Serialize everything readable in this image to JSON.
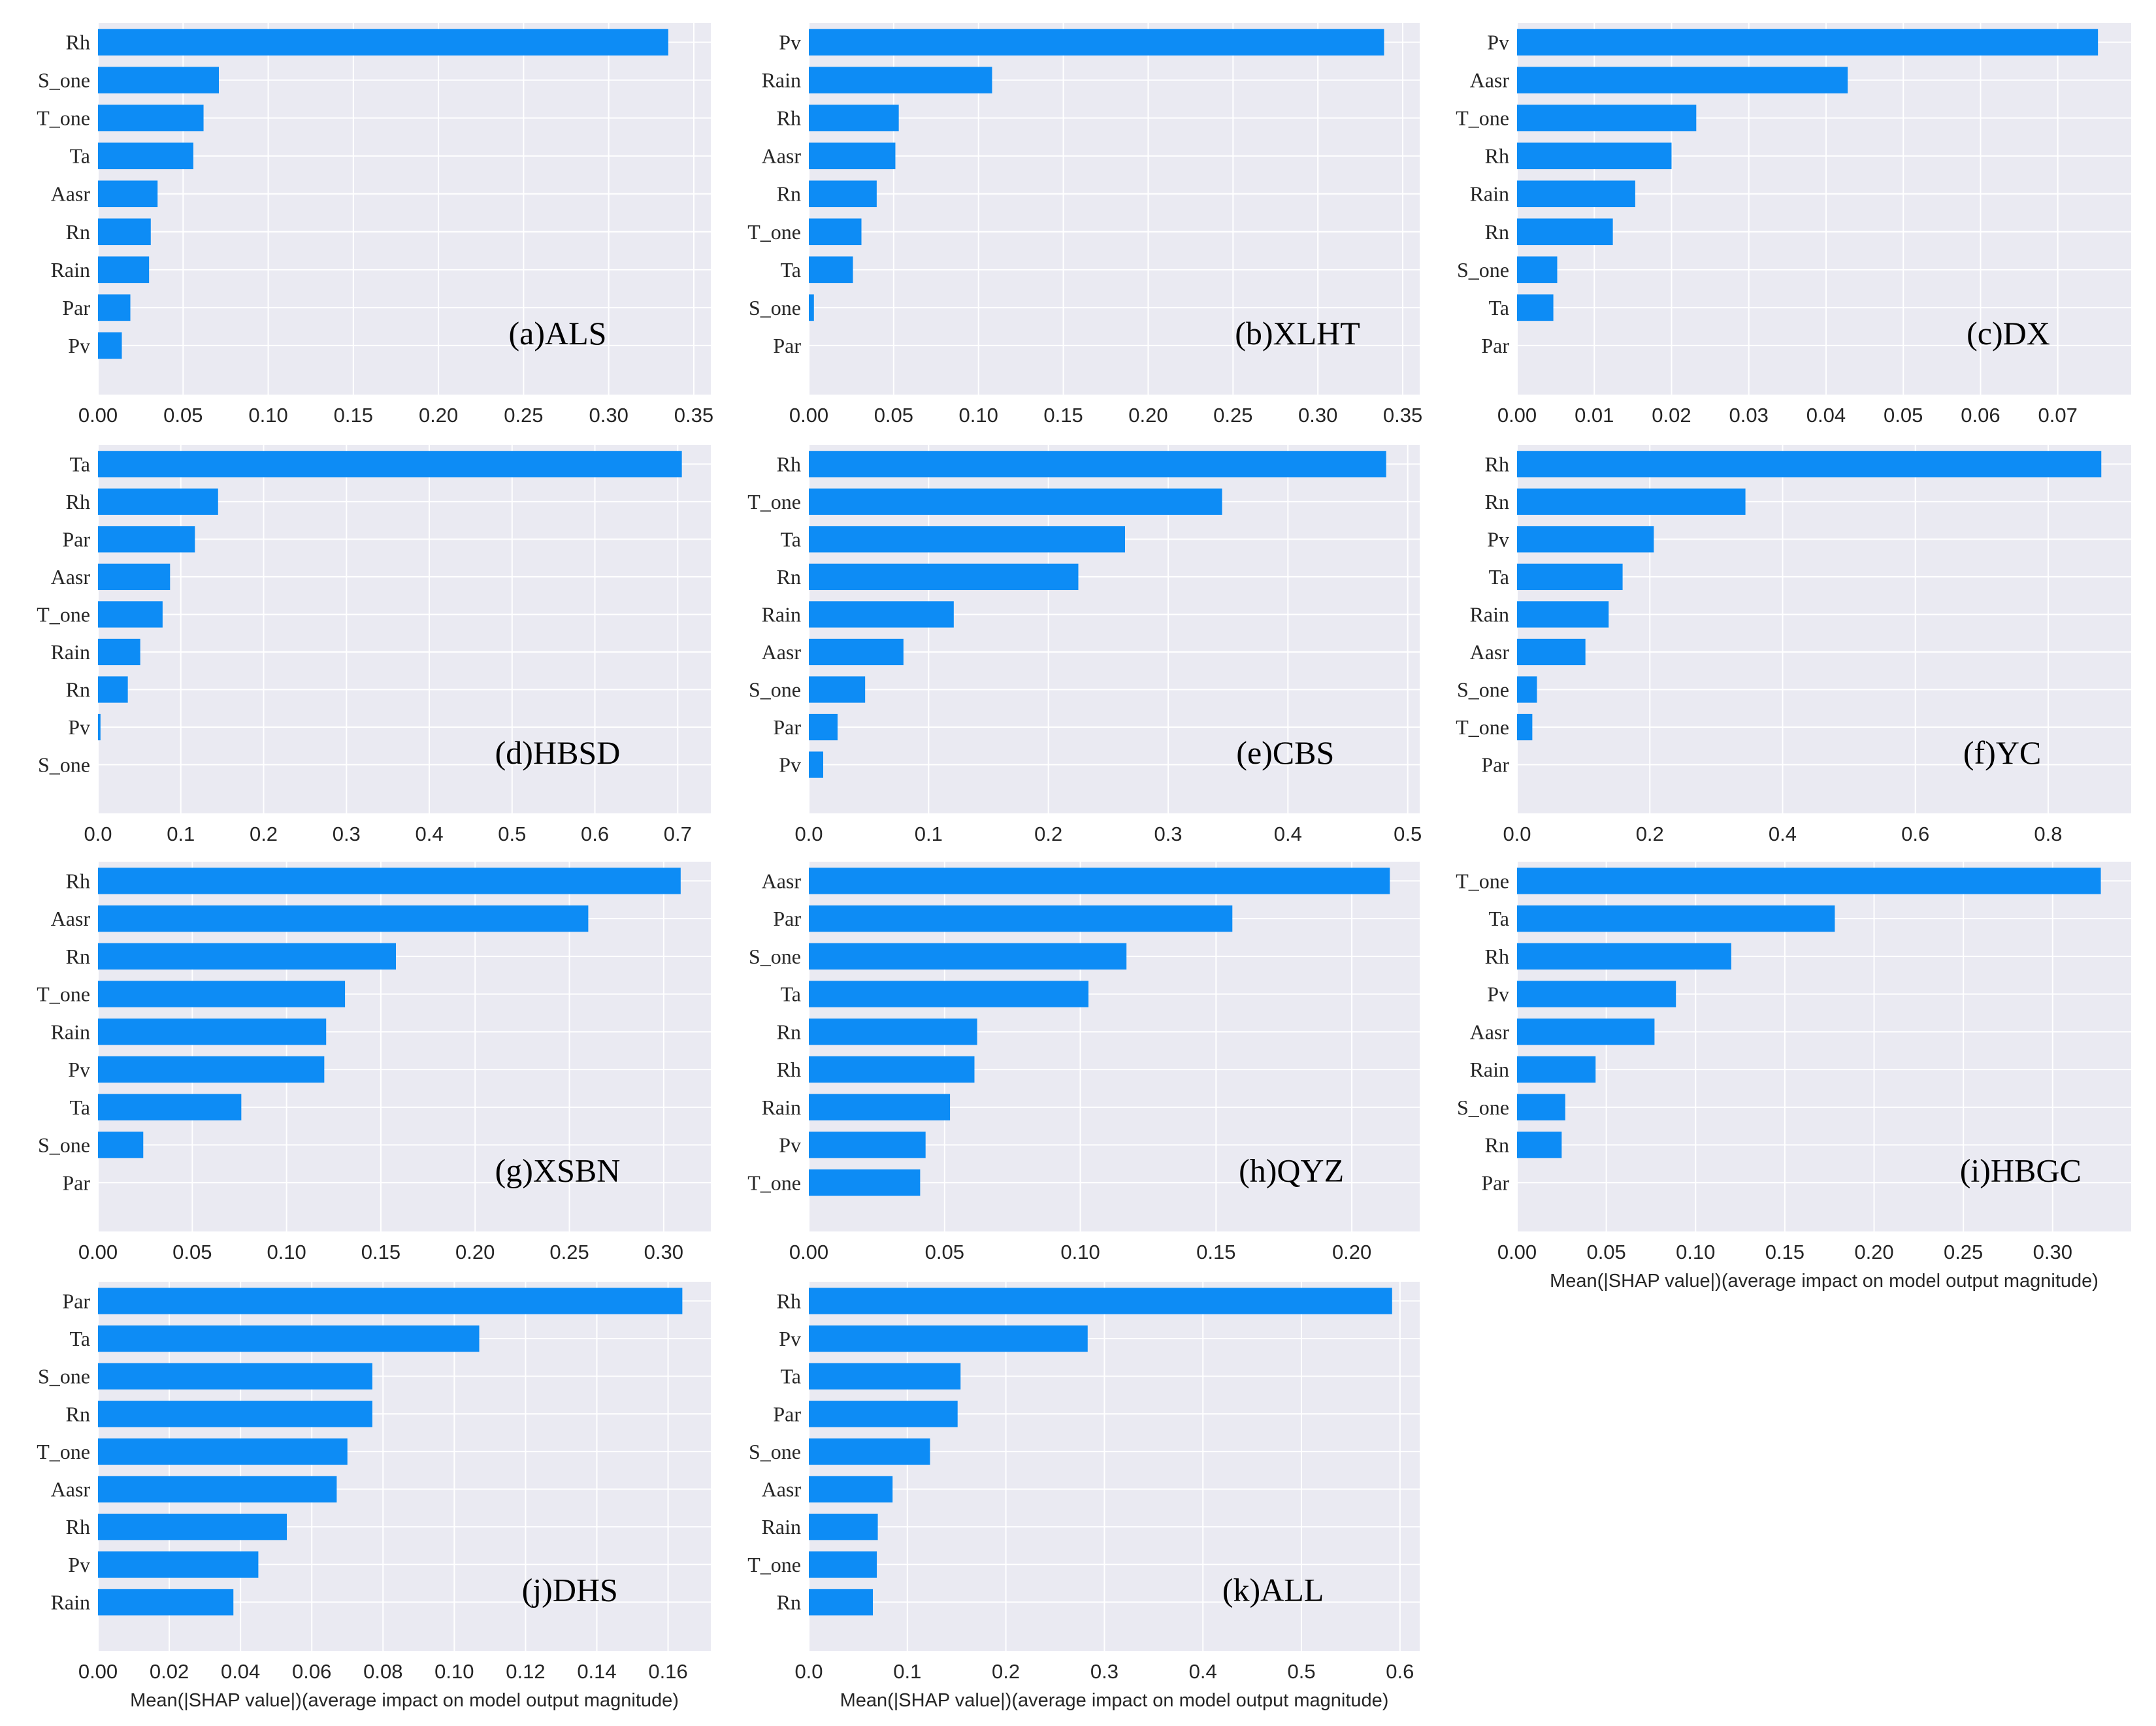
{
  "colors": {
    "bar": "#0d8cf5",
    "plot_bg": "#eaeaf2",
    "grid": "#ffffff",
    "text": "#262626"
  },
  "chart_data": [
    {
      "type": "bar",
      "orientation": "horizontal",
      "title": "(a)ALS",
      "categories": [
        "Rh",
        "S_one",
        "T_one",
        "Ta",
        "Aasr",
        "Rn",
        "Rain",
        "Par",
        "Pv"
      ],
      "values": [
        0.335,
        0.071,
        0.062,
        0.056,
        0.035,
        0.031,
        0.03,
        0.019,
        0.014
      ],
      "xlim": [
        0,
        0.36
      ],
      "xticks": [
        "0.00",
        "0.05",
        "0.10",
        "0.15",
        "0.20",
        "0.25",
        "0.30",
        "0.35"
      ],
      "xlabel": ""
    },
    {
      "type": "bar",
      "orientation": "horizontal",
      "title": "(b)XLHT",
      "categories": [
        "Pv",
        "Rain",
        "Rh",
        "Aasr",
        "Rn",
        "T_one",
        "Ta",
        "S_one",
        "Par"
      ],
      "values": [
        0.339,
        0.108,
        0.053,
        0.051,
        0.04,
        0.031,
        0.026,
        0.003,
        0.0
      ],
      "xlim": [
        0,
        0.36
      ],
      "xticks": [
        "0.00",
        "0.05",
        "0.10",
        "0.15",
        "0.20",
        "0.25",
        "0.30",
        "0.35"
      ],
      "xlabel": ""
    },
    {
      "type": "bar",
      "orientation": "horizontal",
      "title": "(c)DX",
      "categories": [
        "Pv",
        "Aasr",
        "T_one",
        "Rh",
        "Rain",
        "Rn",
        "S_one",
        "Ta",
        "Par"
      ],
      "values": [
        0.0752,
        0.0428,
        0.0232,
        0.02,
        0.0153,
        0.0124,
        0.0052,
        0.0047,
        0.0
      ],
      "xlim": [
        0,
        0.0795
      ],
      "xticks": [
        "0.00",
        "0.01",
        "0.02",
        "0.03",
        "0.04",
        "0.05",
        "0.06",
        "0.07"
      ],
      "xlabel": ""
    },
    {
      "type": "bar",
      "orientation": "horizontal",
      "title": "(d)HBSD",
      "categories": [
        "Ta",
        "Rh",
        "Par",
        "Aasr",
        "T_one",
        "Rain",
        "Rn",
        "Pv",
        "S_one"
      ],
      "values": [
        0.705,
        0.145,
        0.117,
        0.087,
        0.078,
        0.051,
        0.036,
        0.003,
        0.0
      ],
      "xlim": [
        0,
        0.74
      ],
      "xticks": [
        "0.0",
        "0.1",
        "0.2",
        "0.3",
        "0.4",
        "0.5",
        "0.6",
        "0.7"
      ],
      "xlabel": ""
    },
    {
      "type": "bar",
      "orientation": "horizontal",
      "title": "(e)CBS",
      "categories": [
        "Rh",
        "T_one",
        "Ta",
        "Rn",
        "Rain",
        "Aasr",
        "S_one",
        "Par",
        "Pv"
      ],
      "values": [
        0.482,
        0.345,
        0.264,
        0.225,
        0.121,
        0.079,
        0.047,
        0.024,
        0.012
      ],
      "xlim": [
        0,
        0.51
      ],
      "xticks": [
        "0.0",
        "0.1",
        "0.2",
        "0.3",
        "0.4",
        "0.5"
      ],
      "xlabel": ""
    },
    {
      "type": "bar",
      "orientation": "horizontal",
      "title": "(f)YC",
      "categories": [
        "Rh",
        "Rn",
        "Pv",
        "Ta",
        "Rain",
        "Aasr",
        "S_one",
        "T_one",
        "Par"
      ],
      "values": [
        0.88,
        0.344,
        0.206,
        0.159,
        0.138,
        0.103,
        0.03,
        0.023,
        0.0
      ],
      "xlim": [
        0,
        0.925
      ],
      "xticks": [
        "0.0",
        "0.2",
        "0.4",
        "0.6",
        "0.8"
      ],
      "xlabel": ""
    },
    {
      "type": "bar",
      "orientation": "horizontal",
      "title": "(g)XSBN",
      "categories": [
        "Rh",
        "Aasr",
        "Rn",
        "T_one",
        "Rain",
        "Pv",
        "Ta",
        "S_one",
        "Par"
      ],
      "values": [
        0.309,
        0.26,
        0.158,
        0.131,
        0.121,
        0.12,
        0.076,
        0.024,
        0.0
      ],
      "xlim": [
        0,
        0.325
      ],
      "xticks": [
        "0.00",
        "0.05",
        "0.10",
        "0.15",
        "0.20",
        "0.25",
        "0.30"
      ],
      "xlabel": ""
    },
    {
      "type": "bar",
      "orientation": "horizontal",
      "title": "(h)QYZ",
      "categories": [
        "Aasr",
        "Par",
        "S_one",
        "Ta",
        "Rn",
        "Rh",
        "Rain",
        "Pv",
        "T_one"
      ],
      "values": [
        0.214,
        0.156,
        0.117,
        0.103,
        0.062,
        0.061,
        0.052,
        0.043,
        0.041
      ],
      "xlim": [
        0,
        0.225
      ],
      "xticks": [
        "0.00",
        "0.05",
        "0.10",
        "0.15",
        "0.20"
      ],
      "xlabel": ""
    },
    {
      "type": "bar",
      "orientation": "horizontal",
      "title": "(i)HBGC",
      "categories": [
        "T_one",
        "Ta",
        "Rh",
        "Pv",
        "Aasr",
        "Rain",
        "S_one",
        "Rn",
        "Par"
      ],
      "values": [
        0.327,
        0.178,
        0.12,
        0.089,
        0.077,
        0.044,
        0.027,
        0.025,
        0.0
      ],
      "xlim": [
        0,
        0.344
      ],
      "xticks": [
        "0.00",
        "0.05",
        "0.10",
        "0.15",
        "0.20",
        "0.25",
        "0.30"
      ],
      "xlabel": "Mean(|SHAP value|)(average impact on model output magnitude)"
    },
    {
      "type": "bar",
      "orientation": "horizontal",
      "title": "(j)DHS",
      "categories": [
        "Par",
        "Ta",
        "S_one",
        "Rn",
        "T_one",
        "Aasr",
        "Rh",
        "Pv",
        "Rain"
      ],
      "values": [
        0.164,
        0.107,
        0.077,
        0.077,
        0.07,
        0.067,
        0.053,
        0.045,
        0.038
      ],
      "xlim": [
        0,
        0.172
      ],
      "xticks": [
        "0.00",
        "0.02",
        "0.04",
        "0.06",
        "0.08",
        "0.10",
        "0.12",
        "0.14",
        "0.16"
      ],
      "xlabel": "Mean(|SHAP value|)(average impact on model output magnitude)"
    },
    {
      "type": "bar",
      "orientation": "horizontal",
      "title": "(k)ALL",
      "categories": [
        "Rh",
        "Pv",
        "Ta",
        "Par",
        "S_one",
        "Aasr",
        "Rain",
        "T_one",
        "Rn"
      ],
      "values": [
        0.592,
        0.283,
        0.154,
        0.151,
        0.123,
        0.085,
        0.07,
        0.069,
        0.065
      ],
      "xlim": [
        0,
        0.62
      ],
      "xticks": [
        "0.0",
        "0.1",
        "0.2",
        "0.3",
        "0.4",
        "0.5",
        "0.6"
      ],
      "xlabel": "Mean(|SHAP value|)(average impact on model output magnitude)"
    }
  ]
}
